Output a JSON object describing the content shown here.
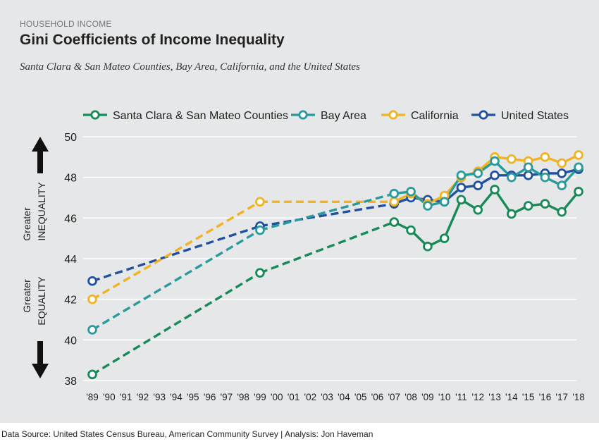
{
  "header": {
    "kicker": "HOUSEHOLD INCOME",
    "title": "Gini Coefficients of Income Inequality",
    "subtitle": "Santa Clara & San Mateo Counties, Bay Area, California, and the United States"
  },
  "side_labels": {
    "inequality_top": "Greater",
    "inequality_bottom": "INEQUALITY",
    "equality_top": "Greater",
    "equality_bottom": "EQUALITY"
  },
  "footer": {
    "source": "Data Source: United States Census Bureau, American Community Survey | Analysis: Jon Haveman"
  },
  "chart_data": {
    "type": "line",
    "title": "Gini Coefficients of Income Inequality",
    "xlabel": "",
    "ylabel": "",
    "ylim": [
      38,
      50
    ],
    "yticks": [
      38,
      40,
      42,
      44,
      46,
      48,
      50
    ],
    "grid": true,
    "legend_position": "top",
    "categories": [
      "'89",
      "'90",
      "'91",
      "'92",
      "'93",
      "'94",
      "'95",
      "'96",
      "'97",
      "'98",
      "'99",
      "'00",
      "'01",
      "'02",
      "'03",
      "'04",
      "'05",
      "'06",
      "'07",
      "'08",
      "'09",
      "'10",
      "'11",
      "'12",
      "'13",
      "'14",
      "'15",
      "'16",
      "'17",
      "'18"
    ],
    "series": [
      {
        "name": "Santa Clara & San Mateo Counties",
        "color": "#168a57",
        "x": [
          "'89",
          "'99",
          "'07",
          "'08",
          "'09",
          "'10",
          "'11",
          "'12",
          "'13",
          "'14",
          "'15",
          "'16",
          "'17",
          "'18"
        ],
        "values": [
          38.3,
          43.3,
          45.8,
          45.4,
          44.6,
          45.0,
          46.9,
          46.4,
          47.4,
          46.2,
          46.6,
          46.7,
          46.3,
          47.3
        ]
      },
      {
        "name": "Bay Area",
        "color": "#2a9a9c",
        "x": [
          "'89",
          "'99",
          "'07",
          "'08",
          "'09",
          "'10",
          "'11",
          "'12",
          "'13",
          "'14",
          "'15",
          "'16",
          "'17",
          "'18"
        ],
        "values": [
          40.5,
          45.4,
          47.2,
          47.3,
          46.6,
          46.8,
          48.1,
          48.2,
          48.8,
          48.0,
          48.5,
          48.0,
          47.6,
          48.5
        ]
      },
      {
        "name": "California",
        "color": "#f0b323",
        "x": [
          "'89",
          "'99",
          "'07",
          "'08",
          "'09",
          "'10",
          "'11",
          "'12",
          "'13",
          "'14",
          "'15",
          "'16",
          "'17",
          "'18"
        ],
        "values": [
          42.0,
          46.8,
          46.8,
          47.2,
          46.7,
          47.1,
          48.0,
          48.3,
          49.0,
          48.9,
          48.8,
          49.0,
          48.7,
          49.1
        ]
      },
      {
        "name": "United States",
        "color": "#21509f",
        "x": [
          "'89",
          "'99",
          "'07",
          "'08",
          "'09",
          "'10",
          "'11",
          "'12",
          "'13",
          "'14",
          "'15",
          "'16",
          "'17",
          "'18"
        ],
        "values": [
          42.9,
          45.6,
          46.7,
          47.0,
          46.9,
          46.8,
          47.5,
          47.6,
          48.1,
          48.1,
          48.1,
          48.2,
          48.2,
          48.4
        ]
      }
    ]
  }
}
